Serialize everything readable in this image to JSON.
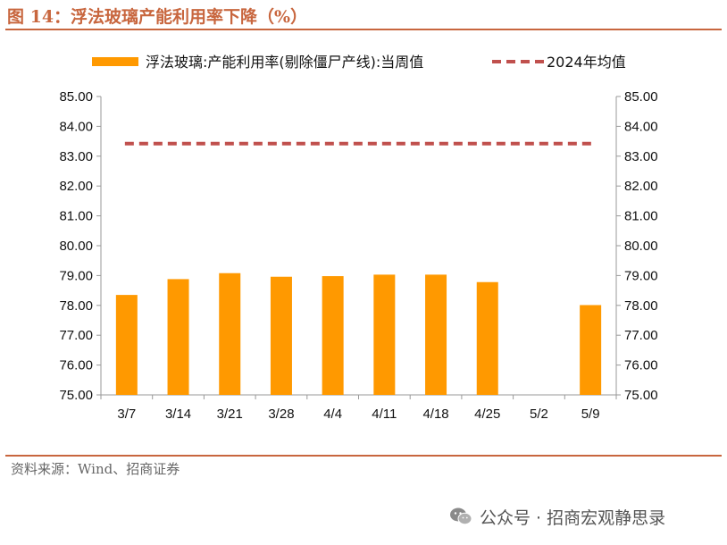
{
  "header": {
    "title": "图 14：浮法玻璃产能利用率下降（%）"
  },
  "footer": {
    "source": "资料来源：Wind、招商证券",
    "watermark": "公众号 · 招商宏观静思录",
    "watermark_icon": "wechat-icon"
  },
  "chart_data": {
    "type": "bar",
    "title": "图 14：浮法玻璃产能利用率下降（%）",
    "categories": [
      "3/7",
      "3/14",
      "3/21",
      "3/28",
      "4/4",
      "4/11",
      "4/18",
      "4/25",
      "5/2",
      "5/9"
    ],
    "series": [
      {
        "name": "浮法玻璃:产能利用率(剔除僵尸产线):当周值",
        "type": "bar",
        "color": "#ff9900",
        "values": [
          78.35,
          78.88,
          79.08,
          78.96,
          78.98,
          79.03,
          79.03,
          78.78,
          null,
          78.01
        ]
      },
      {
        "name": "2024年均值",
        "type": "line",
        "style": "dashed",
        "color": "#c0504d",
        "value": 83.42
      }
    ],
    "y_ticks": [
      "75.00",
      "76.00",
      "77.00",
      "78.00",
      "79.00",
      "80.00",
      "81.00",
      "82.00",
      "83.00",
      "84.00",
      "85.00"
    ],
    "ylim": [
      75,
      85
    ],
    "secondary_ylim": [
      75,
      85
    ],
    "grid": false,
    "legend_position": "top"
  }
}
